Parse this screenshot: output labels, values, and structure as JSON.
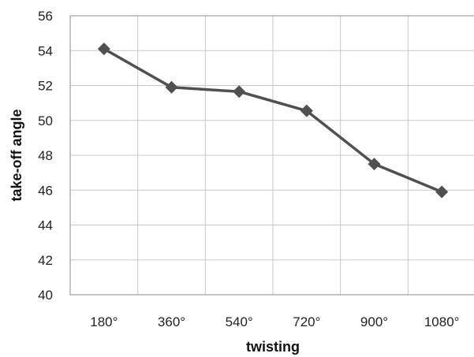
{
  "chart_data": {
    "type": "line",
    "categories": [
      "180°",
      "360°",
      "540°",
      "720°",
      "900°",
      "1080°"
    ],
    "series": [
      {
        "values": [
          54.1,
          51.9,
          51.65,
          50.55,
          47.5,
          45.9
        ],
        "color": "#505050",
        "marker": "diamond"
      }
    ],
    "xlabel": "twisting",
    "ylabel": "take-off angle",
    "ylim": [
      40,
      56
    ],
    "yticks": [
      "40",
      "42",
      "44",
      "46",
      "48",
      "50",
      "52",
      "54",
      "56"
    ],
    "grid": true,
    "legend": "none"
  }
}
